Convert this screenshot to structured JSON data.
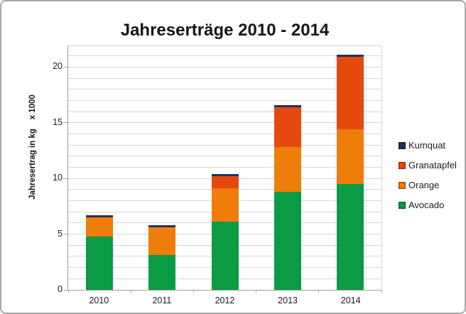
{
  "chart": {
    "frame_border_color": "#a8a8a8",
    "gridline_color": "#d6d6d6",
    "axis_color": "#9f9f9f",
    "background_color": "#ffffff"
  },
  "chart_data": {
    "type": "bar",
    "stacked": true,
    "title": "Jahreserträge 2010 - 2014",
    "xlabel": "",
    "ylabel": "Jahresertrag in kg    x 1000",
    "categories": [
      "2010",
      "2011",
      "2012",
      "2013",
      "2014"
    ],
    "series": [
      {
        "name": "Avocado",
        "color": "#0a9b44",
        "values": [
          4.8,
          3.1,
          6.1,
          8.8,
          9.5
        ]
      },
      {
        "name": "Orange",
        "color": "#ef7d0c",
        "values": [
          1.7,
          2.5,
          3.0,
          4.0,
          4.9
        ]
      },
      {
        "name": "Granatapfel",
        "color": "#e6490d",
        "values": [
          0,
          0,
          1.1,
          3.6,
          6.5
        ]
      },
      {
        "name": "Kumquat",
        "color": "#20315e",
        "values": [
          0.2,
          0.2,
          0.2,
          0.2,
          0.2
        ]
      }
    ],
    "totals": [
      6.7,
      5.8,
      10.4,
      16.6,
      21.1
    ],
    "ylim": [
      0,
      22
    ],
    "ytick_values": [
      0,
      5,
      10,
      15,
      20
    ],
    "ytick_labels": [
      "0",
      "5",
      "10",
      "15",
      "20"
    ],
    "grid": true,
    "gridline_step": 1,
    "legend_position": "right",
    "legend_order": [
      "Kumquat",
      "Granatapfel",
      "Orange",
      "Avocado"
    ]
  }
}
